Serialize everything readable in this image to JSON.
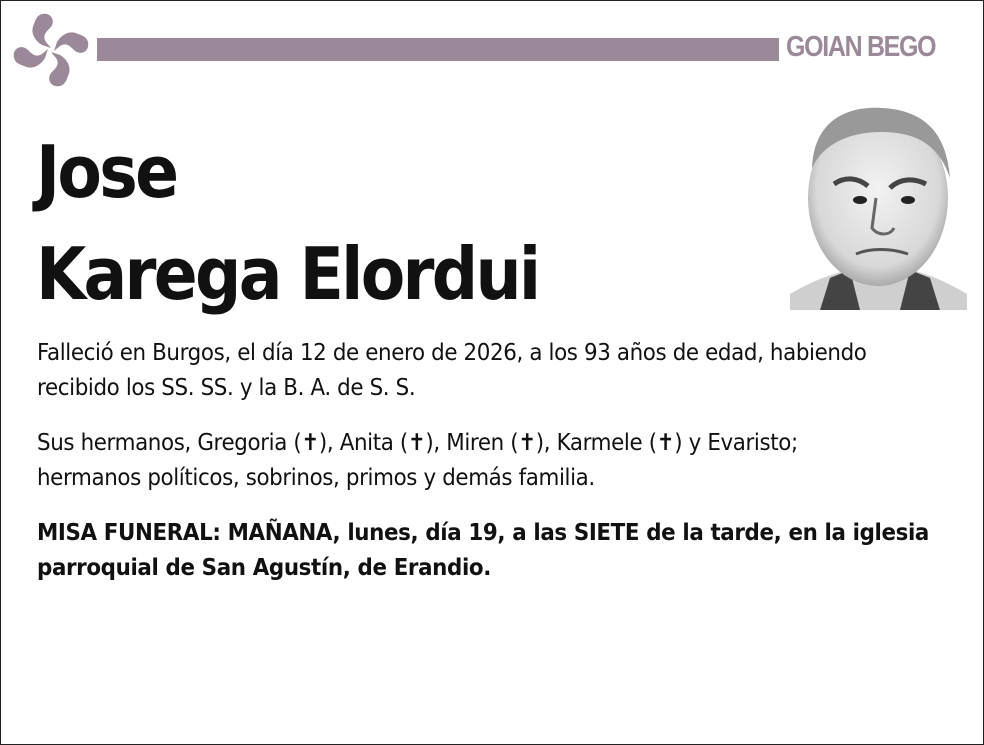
{
  "header": {
    "brand": "GOIAN BEGO",
    "logo_icon": "lauburu-icon",
    "accent_color": "#9b8899"
  },
  "deceased": {
    "first_name": "Jose",
    "surnames": "Karega Elordui",
    "photo": "portrait-photo"
  },
  "body": {
    "paragraph_1": "Falleció en Burgos, el día 12 de enero de 2026, a los 93 años de edad, habiendo recibido los SS. SS. y la B. A. de S. S.",
    "paragraph_2": "Sus hermanos, Gregoria (✝), Anita (✝), Miren (✝), Karmele (✝) y Evaristo; hermanos políticos, sobrinos, primos y demás familia.",
    "paragraph_3": "MISA FUNERAL: MAÑANA, lunes, día 19, a las SIETE de la tarde, en la iglesia parroquial de San Agustín, de Erandio."
  }
}
